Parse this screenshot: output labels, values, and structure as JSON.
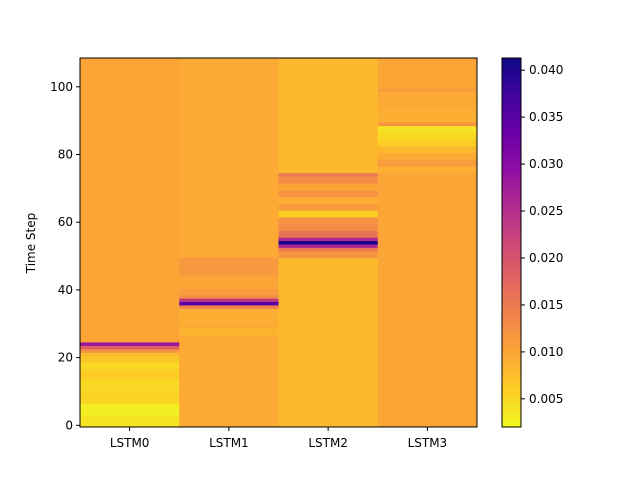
{
  "chart_data": {
    "type": "heatmap",
    "title": "",
    "xlabel": "",
    "ylabel": "Time Step",
    "columns": [
      "LSTM0",
      "LSTM1",
      "LSTM2",
      "LSTM3"
    ],
    "ylim": [
      -0.5,
      108.5
    ],
    "yticks": [
      0,
      20,
      40,
      60,
      80,
      100
    ],
    "colormap": "plasma_r",
    "colorbar": {
      "range": [
        0.002,
        0.0413
      ],
      "ticks": [
        0.005,
        0.01,
        0.015,
        0.02,
        0.025,
        0.03,
        0.035,
        0.04
      ],
      "tick_labels": [
        "0.005",
        "0.010",
        "0.015",
        "0.020",
        "0.025",
        "0.030",
        "0.035",
        "0.040"
      ]
    },
    "baseline": [
      0.01,
      0.0095,
      0.008,
      0.01
    ],
    "segments": [
      [
        {
          "from": 0,
          "to": 2,
          "value": 0.004
        },
        {
          "from": 3,
          "to": 6,
          "value": 0.003
        },
        {
          "from": 7,
          "to": 10,
          "value": 0.0055
        },
        {
          "from": 11,
          "to": 13,
          "value": 0.005
        },
        {
          "from": 14,
          "to": 16,
          "value": 0.006
        },
        {
          "from": 17,
          "to": 18,
          "value": 0.005
        },
        {
          "from": 19,
          "to": 20,
          "value": 0.0065
        },
        {
          "from": 21,
          "to": 21,
          "value": 0.008
        },
        {
          "from": 22,
          "to": 22,
          "value": 0.012
        },
        {
          "from": 23,
          "to": 23,
          "value": 0.018
        },
        {
          "from": 24,
          "to": 24,
          "value": 0.028
        }
      ],
      [
        {
          "from": 27,
          "to": 28,
          "value": 0.0085
        },
        {
          "from": 30,
          "to": 34,
          "value": 0.009
        },
        {
          "from": 35,
          "to": 35,
          "value": 0.014
        },
        {
          "from": 36,
          "to": 36,
          "value": 0.035
        },
        {
          "from": 37,
          "to": 37,
          "value": 0.024
        },
        {
          "from": 38,
          "to": 38,
          "value": 0.013
        },
        {
          "from": 39,
          "to": 40,
          "value": 0.011
        },
        {
          "from": 41,
          "to": 44,
          "value": 0.01
        },
        {
          "from": 45,
          "to": 49,
          "value": 0.0115
        }
      ],
      [
        {
          "from": 50,
          "to": 51,
          "value": 0.012
        },
        {
          "from": 52,
          "to": 52,
          "value": 0.015
        },
        {
          "from": 53,
          "to": 53,
          "value": 0.026
        },
        {
          "from": 54,
          "to": 54,
          "value": 0.041
        },
        {
          "from": 55,
          "to": 55,
          "value": 0.026
        },
        {
          "from": 56,
          "to": 57,
          "value": 0.016
        },
        {
          "from": 58,
          "to": 59,
          "value": 0.013
        },
        {
          "from": 60,
          "to": 61,
          "value": 0.012
        },
        {
          "from": 62,
          "to": 63,
          "value": 0.006
        },
        {
          "from": 64,
          "to": 65,
          "value": 0.011
        },
        {
          "from": 66,
          "to": 67,
          "value": 0.009
        },
        {
          "from": 68,
          "to": 69,
          "value": 0.012
        },
        {
          "from": 70,
          "to": 71,
          "value": 0.01
        },
        {
          "from": 72,
          "to": 73,
          "value": 0.013
        },
        {
          "from": 74,
          "to": 74,
          "value": 0.015
        }
      ],
      [
        {
          "from": 75,
          "to": 76,
          "value": 0.009
        },
        {
          "from": 77,
          "to": 78,
          "value": 0.011
        },
        {
          "from": 79,
          "to": 80,
          "value": 0.0095
        },
        {
          "from": 81,
          "to": 82,
          "value": 0.008
        },
        {
          "from": 83,
          "to": 84,
          "value": 0.006
        },
        {
          "from": 85,
          "to": 86,
          "value": 0.005
        },
        {
          "from": 87,
          "to": 88,
          "value": 0.004
        },
        {
          "from": 89,
          "to": 89,
          "value": 0.012
        },
        {
          "from": 90,
          "to": 93,
          "value": 0.009
        },
        {
          "from": 94,
          "to": 98,
          "value": 0.0095
        },
        {
          "from": 99,
          "to": 99,
          "value": 0.011
        }
      ]
    ]
  }
}
